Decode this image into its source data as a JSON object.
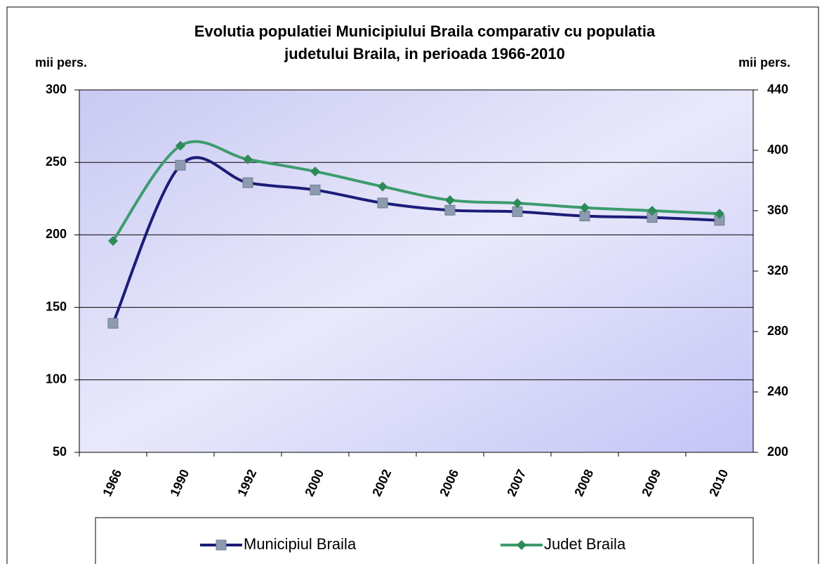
{
  "chart_data": {
    "type": "line",
    "title": [
      "Evolutia populatiei  Municipiului  Braila comparativ cu populatia",
      "judetului Braila, in perioada 1966-2010"
    ],
    "y_label": "mii pers.",
    "y2_label": "mii pers.",
    "categories": [
      "1966",
      "1990",
      "1992",
      "2000",
      "2002",
      "2006",
      "2007",
      "2008",
      "2009",
      "2010"
    ],
    "series": [
      {
        "name": "Municipiul Braila",
        "color": "#1c1c78",
        "marker_color": "#8c9bb0",
        "marker": "square",
        "axis": "y",
        "values": [
          139,
          248,
          236,
          231,
          222,
          217,
          216,
          213,
          212,
          210
        ]
      },
      {
        "name": "Judet Braila",
        "color": "#3c9c6c",
        "marker_color": "#2e8a58",
        "marker": "diamond",
        "axis": "y2",
        "values": [
          340,
          403,
          394,
          386,
          376,
          367,
          365,
          362,
          360,
          358
        ]
      }
    ],
    "ylim": [
      50,
      300
    ],
    "yticks": [
      50,
      100,
      150,
      200,
      250,
      300
    ],
    "y2lim": [
      200,
      440
    ],
    "y2ticks": [
      200,
      240,
      280,
      320,
      360,
      400,
      440
    ],
    "grid": true,
    "legend": "bottom"
  }
}
